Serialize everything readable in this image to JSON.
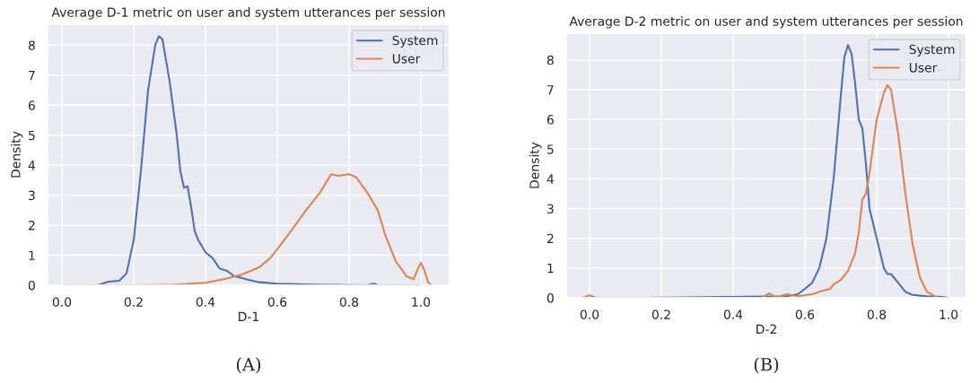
{
  "chart_data": [
    {
      "type": "line",
      "title": "Average D-1 metric on user and system utterances per session",
      "xlabel": "D-1",
      "ylabel": "Density",
      "annotations": [
        "(A)"
      ],
      "xlim": [
        -0.04,
        1.08
      ],
      "xticks": [
        {
          "value": 0,
          "label": "0.0"
        },
        {
          "value": 0.2,
          "label": "0.2"
        },
        {
          "value": 0.4,
          "label": "0.4"
        },
        {
          "value": 0.6,
          "label": "0.6"
        },
        {
          "value": 0.8,
          "label": "0.8"
        },
        {
          "value": 1,
          "label": "1.0"
        }
      ],
      "ylim": [
        0,
        8.7
      ],
      "yticks": [
        0,
        1,
        2,
        3,
        4,
        5,
        6,
        7,
        8
      ],
      "grid": true,
      "legend": "top right",
      "series": [
        {
          "name": "System",
          "color": "#4c72b0",
          "x": [
            0.01,
            0.1,
            0.13,
            0.16,
            0.18,
            0.2,
            0.22,
            0.24,
            0.26,
            0.27,
            0.28,
            0.3,
            0.32,
            0.33,
            0.34,
            0.35,
            0.36,
            0.37,
            0.38,
            0.4,
            0.42,
            0.44,
            0.46,
            0.48,
            0.5,
            0.52,
            0.55,
            0.6,
            0.7,
            0.85,
            0.87,
            0.88,
            1.0
          ],
          "values": [
            0,
            0,
            0.12,
            0.15,
            0.4,
            1.5,
            3.8,
            6.5,
            8.0,
            8.3,
            8.2,
            6.8,
            5.0,
            3.8,
            3.25,
            3.3,
            2.6,
            1.8,
            1.5,
            1.1,
            0.9,
            0.55,
            0.48,
            0.3,
            0.25,
            0.18,
            0.1,
            0.05,
            0.02,
            0,
            0.05,
            0,
            0
          ]
        },
        {
          "name": "User",
          "color": "#dd8452",
          "x": [
            0.02,
            0.2,
            0.3,
            0.4,
            0.45,
            0.5,
            0.55,
            0.58,
            0.6,
            0.65,
            0.68,
            0.72,
            0.75,
            0.77,
            0.8,
            0.82,
            0.85,
            0.88,
            0.9,
            0.93,
            0.96,
            0.98,
            0.99,
            1.0,
            1.01,
            1.02,
            1.03
          ],
          "values": [
            0,
            0,
            0.01,
            0.08,
            0.2,
            0.35,
            0.6,
            0.9,
            1.2,
            2.0,
            2.5,
            3.1,
            3.7,
            3.65,
            3.7,
            3.6,
            3.1,
            2.5,
            1.7,
            0.8,
            0.3,
            0.2,
            0.5,
            0.75,
            0.5,
            0.1,
            0
          ]
        }
      ]
    },
    {
      "type": "line",
      "title": "Average D-2 metric on user and system utterances per session",
      "xlabel": "D-2",
      "ylabel": "Density",
      "annotations": [
        "(B)"
      ],
      "xlim": [
        -0.065,
        1.05
      ],
      "xticks": [
        {
          "value": 0,
          "label": "0.0"
        },
        {
          "value": 0.2,
          "label": "0.2"
        },
        {
          "value": 0.4,
          "label": "0.4"
        },
        {
          "value": 0.6,
          "label": "0.6"
        },
        {
          "value": 0.8,
          "label": "0.8"
        },
        {
          "value": 1,
          "label": "1.0"
        }
      ],
      "ylim": [
        0,
        8.9
      ],
      "yticks": [
        0,
        1,
        2,
        3,
        4,
        5,
        6,
        7,
        8
      ],
      "grid": true,
      "legend": "top right",
      "series": [
        {
          "name": "System",
          "color": "#4c72b0",
          "x": [
            0.15,
            0.55,
            0.58,
            0.6,
            0.62,
            0.64,
            0.66,
            0.68,
            0.7,
            0.71,
            0.72,
            0.73,
            0.74,
            0.75,
            0.76,
            0.77,
            0.78,
            0.8,
            0.82,
            0.83,
            0.84,
            0.86,
            0.88,
            0.9,
            0.94,
            0.98,
            1.0
          ],
          "values": [
            0,
            0.05,
            0.12,
            0.3,
            0.5,
            1.0,
            2.0,
            4.0,
            6.8,
            8.1,
            8.5,
            8.2,
            7.2,
            6.0,
            5.7,
            4.5,
            3.0,
            2.0,
            1.0,
            0.8,
            0.8,
            0.5,
            0.2,
            0.1,
            0.05,
            0.03,
            0
          ]
        },
        {
          "name": "User",
          "color": "#dd8452",
          "x": [
            -0.02,
            0.0,
            0.02,
            0.48,
            0.5,
            0.52,
            0.55,
            0.58,
            0.62,
            0.64,
            0.67,
            0.68,
            0.7,
            0.72,
            0.74,
            0.75,
            0.76,
            0.77,
            0.78,
            0.8,
            0.82,
            0.83,
            0.84,
            0.86,
            0.88,
            0.9,
            0.92,
            0.94,
            0.97
          ],
          "values": [
            0,
            0.08,
            0,
            0,
            0.15,
            0.02,
            0.12,
            0.05,
            0.12,
            0.2,
            0.3,
            0.45,
            0.6,
            0.9,
            1.5,
            2.2,
            3.3,
            3.5,
            4.2,
            6.0,
            6.9,
            7.15,
            7.0,
            5.5,
            3.5,
            1.8,
            0.7,
            0.2,
            0
          ]
        }
      ]
    }
  ]
}
